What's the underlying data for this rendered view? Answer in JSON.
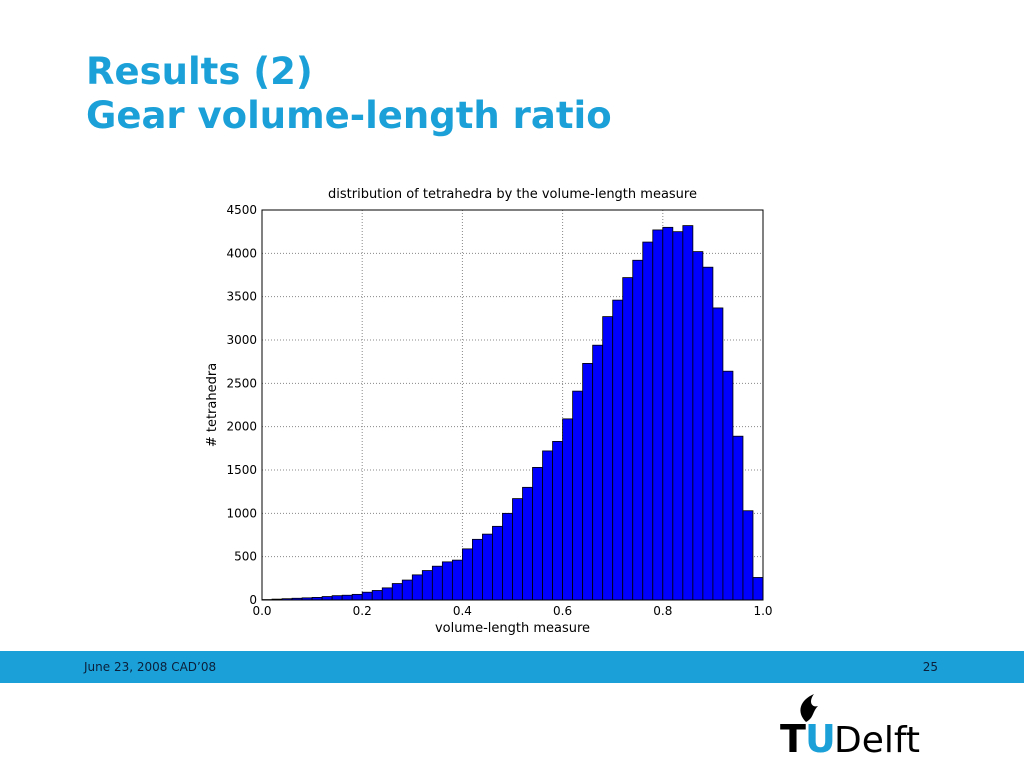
{
  "slide": {
    "title_lines": [
      "Results (2)",
      "Gear volume-length ratio"
    ],
    "footer": {
      "date": "June 23, 2008 CAD’08",
      "page": "25"
    },
    "logo": {
      "t": "T",
      "u": "U",
      "delft": "Delft"
    }
  },
  "chart_data": {
    "type": "histogram",
    "title": "distribution of tetrahedra by the volume-length measure",
    "xlabel": "volume-length measure",
    "ylabel": "# tetrahedra",
    "color": "#0000ff",
    "edgecolor": "#000000",
    "grid": true,
    "bins": [
      0,
      0.02,
      0.04,
      0.06,
      0.08,
      0.1,
      0.12,
      0.14,
      0.16,
      0.18,
      0.2,
      0.22,
      0.24,
      0.26,
      0.28,
      0.3,
      0.32,
      0.34,
      0.36,
      0.38,
      0.4,
      0.42,
      0.44,
      0.46,
      0.48,
      0.5,
      0.52,
      0.54,
      0.56,
      0.58,
      0.6,
      0.62,
      0.64,
      0.66,
      0.68,
      0.7,
      0.72,
      0.74,
      0.76,
      0.78,
      0.8,
      0.82,
      0.84,
      0.86,
      0.88,
      0.9,
      0.92,
      0.94,
      0.96,
      0.98,
      1
    ],
    "values": [
      5,
      10,
      15,
      20,
      25,
      30,
      40,
      50,
      55,
      65,
      90,
      110,
      140,
      190,
      230,
      290,
      340,
      390,
      440,
      460,
      590,
      700,
      760,
      850,
      1000,
      1170,
      1300,
      1530,
      1720,
      1830,
      2090,
      2410,
      2730,
      2940,
      3270,
      3460,
      3720,
      3920,
      4130,
      4270,
      4300,
      4250,
      4320,
      4020,
      3840,
      3370,
      2640,
      1890,
      1030,
      260
    ],
    "xlim": [
      0,
      1
    ],
    "ylim": [
      0,
      4500
    ],
    "xticks": [
      {
        "value": 0,
        "label": "0.0"
      },
      0.2,
      0.4,
      0.6,
      0.8,
      {
        "value": 1,
        "label": "1.0"
      }
    ],
    "yticks": [
      0,
      500,
      1000,
      1500,
      2000,
      2500,
      3000,
      3500,
      4000,
      4500
    ]
  }
}
